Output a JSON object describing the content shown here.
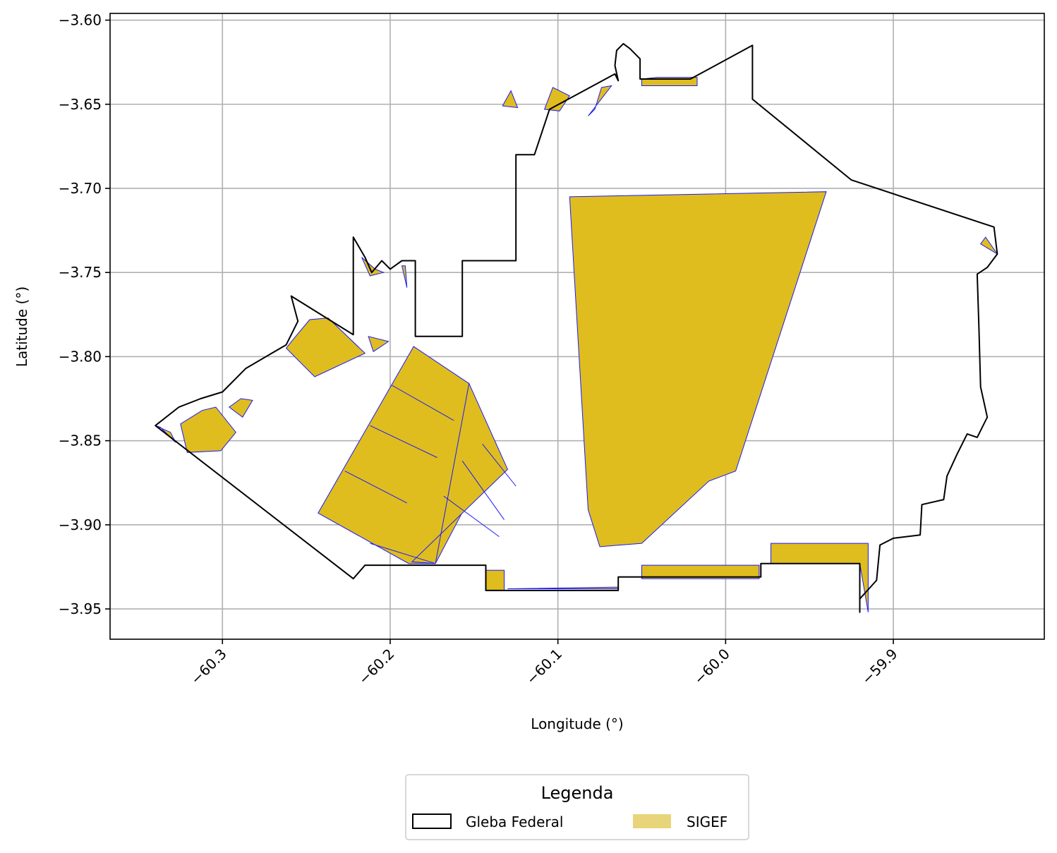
{
  "chart_data": {
    "type": "map",
    "xlabel": "Longitude (°)",
    "ylabel": "Latitude (°)",
    "xlim": [
      -60.367,
      -59.81
    ],
    "ylim": [
      -3.968,
      -3.596
    ],
    "xticks": [
      -60.3,
      -60.2,
      -60.1,
      -60.0,
      -59.9
    ],
    "xtick_labels": [
      "−60.3",
      "−60.2",
      "−60.1",
      "−60.0",
      "−59.9"
    ],
    "yticks": [
      -3.6,
      -3.65,
      -3.7,
      -3.75,
      -3.8,
      -3.85,
      -3.9,
      -3.95
    ],
    "ytick_labels": [
      "−3.60",
      "−3.65",
      "−3.70",
      "−3.75",
      "−3.80",
      "−3.85",
      "−3.90",
      "−3.95"
    ],
    "grid": true,
    "legend": {
      "title": "Legenda",
      "placement": "bottom-center",
      "entries": [
        {
          "label": "Gleba Federal",
          "style": "outline",
          "color": "#000000"
        },
        {
          "label": "SIGEF",
          "style": "fill",
          "color": "#e8d57a"
        }
      ]
    },
    "colors": {
      "gleba_edge": "#000000",
      "sigef_fill": "#dfbd1f",
      "sigef_edge": "#1a1aff",
      "grid": "#b0b0b0"
    },
    "gleba_federal": [
      [
        -60.34,
        -3.841
      ],
      [
        -60.222,
        -3.932
      ],
      [
        -60.215,
        -3.924
      ],
      [
        -60.143,
        -3.924
      ],
      [
        -60.143,
        -3.939
      ],
      [
        -60.064,
        -3.939
      ],
      [
        -60.064,
        -3.931
      ],
      [
        -59.979,
        -3.931
      ],
      [
        -59.979,
        -3.923
      ],
      [
        -59.92,
        -3.923
      ],
      [
        -59.92,
        -3.952
      ],
      [
        -59.92,
        -3.944
      ],
      [
        -59.91,
        -3.933
      ],
      [
        -59.908,
        -3.912
      ],
      [
        -59.9,
        -3.908
      ],
      [
        -59.884,
        -3.906
      ],
      [
        -59.883,
        -3.888
      ],
      [
        -59.87,
        -3.885
      ],
      [
        -59.868,
        -3.871
      ],
      [
        -59.862,
        -3.858
      ],
      [
        -59.856,
        -3.846
      ],
      [
        -59.85,
        -3.848
      ],
      [
        -59.844,
        -3.836
      ],
      [
        -59.848,
        -3.818
      ],
      [
        -59.849,
        -3.782
      ],
      [
        -59.85,
        -3.751
      ],
      [
        -59.844,
        -3.747
      ],
      [
        -59.838,
        -3.739
      ],
      [
        -59.84,
        -3.723
      ],
      [
        -59.925,
        -3.695
      ],
      [
        -59.984,
        -3.647
      ],
      [
        -59.984,
        -3.615
      ],
      [
        -60.021,
        -3.635
      ],
      [
        -60.051,
        -3.635
      ],
      [
        -60.051,
        -3.623
      ],
      [
        -60.057,
        -3.617
      ],
      [
        -60.061,
        -3.614
      ],
      [
        -60.065,
        -3.618
      ],
      [
        -60.066,
        -3.627
      ],
      [
        -60.064,
        -3.636
      ],
      [
        -60.066,
        -3.632
      ],
      [
        -60.105,
        -3.653
      ],
      [
        -60.114,
        -3.68
      ],
      [
        -60.125,
        -3.68
      ],
      [
        -60.125,
        -3.743
      ],
      [
        -60.157,
        -3.743
      ],
      [
        -60.157,
        -3.788
      ],
      [
        -60.185,
        -3.788
      ],
      [
        -60.185,
        -3.743
      ],
      [
        -60.193,
        -3.743
      ],
      [
        -60.2,
        -3.748
      ],
      [
        -60.205,
        -3.743
      ],
      [
        -60.211,
        -3.75
      ],
      [
        -60.215,
        -3.741
      ],
      [
        -60.222,
        -3.729
      ],
      [
        -60.222,
        -3.787
      ],
      [
        -60.259,
        -3.764
      ],
      [
        -60.255,
        -3.779
      ],
      [
        -60.262,
        -3.793
      ],
      [
        -60.286,
        -3.807
      ],
      [
        -60.3,
        -3.821
      ],
      [
        -60.313,
        -3.825
      ],
      [
        -60.326,
        -3.83
      ],
      [
        -60.34,
        -3.841
      ]
    ],
    "sigef_parcels": [
      [
        [
          -60.093,
          -3.705
        ],
        [
          -59.94,
          -3.702
        ],
        [
          -59.994,
          -3.868
        ],
        [
          -60.01,
          -3.874
        ],
        [
          -60.05,
          -3.911
        ],
        [
          -60.075,
          -3.913
        ],
        [
          -60.082,
          -3.891
        ]
      ],
      [
        [
          -60.186,
          -3.794
        ],
        [
          -60.153,
          -3.816
        ],
        [
          -60.143,
          -3.866
        ],
        [
          -60.173,
          -3.923
        ],
        [
          -60.189,
          -3.923
        ],
        [
          -60.243,
          -3.893
        ]
      ],
      [
        [
          -60.153,
          -3.816
        ],
        [
          -60.13,
          -3.867
        ],
        [
          -60.187,
          -3.922
        ],
        [
          -60.173,
          -3.923
        ]
      ],
      [
        [
          -60.05,
          -3.924
        ],
        [
          -59.98,
          -3.924
        ],
        [
          -59.98,
          -3.932
        ],
        [
          -60.05,
          -3.932
        ]
      ],
      [
        [
          -59.973,
          -3.911
        ],
        [
          -59.915,
          -3.911
        ],
        [
          -59.915,
          -3.952
        ],
        [
          -59.92,
          -3.923
        ],
        [
          -59.973,
          -3.923
        ]
      ],
      [
        [
          -60.143,
          -3.927
        ],
        [
          -60.132,
          -3.927
        ],
        [
          -60.132,
          -3.939
        ],
        [
          -60.143,
          -3.939
        ]
      ],
      [
        [
          -60.13,
          -3.938
        ],
        [
          -60.064,
          -3.937
        ],
        [
          -60.064,
          -3.938
        ],
        [
          -60.13,
          -3.938
        ]
      ],
      [
        [
          -60.258,
          -3.79
        ],
        [
          -60.248,
          -3.778
        ],
        [
          -60.237,
          -3.777
        ],
        [
          -60.215,
          -3.798
        ],
        [
          -60.245,
          -3.812
        ],
        [
          -60.262,
          -3.795
        ]
      ],
      [
        [
          -60.213,
          -3.788
        ],
        [
          -60.201,
          -3.791
        ],
        [
          -60.21,
          -3.797
        ]
      ],
      [
        [
          -60.312,
          -3.832
        ],
        [
          -60.325,
          -3.84
        ],
        [
          -60.321,
          -3.857
        ],
        [
          -60.301,
          -3.856
        ],
        [
          -60.292,
          -3.845
        ],
        [
          -60.304,
          -3.83
        ]
      ],
      [
        [
          -60.34,
          -3.841
        ],
        [
          -60.331,
          -3.845
        ],
        [
          -60.328,
          -3.851
        ],
        [
          -60.337,
          -3.842
        ]
      ],
      [
        [
          -60.296,
          -3.83
        ],
        [
          -60.289,
          -3.825
        ],
        [
          -60.282,
          -3.826
        ],
        [
          -60.288,
          -3.836
        ]
      ],
      [
        [
          -60.217,
          -3.741
        ],
        [
          -60.209,
          -3.748
        ],
        [
          -60.204,
          -3.75
        ],
        [
          -60.212,
          -3.752
        ]
      ],
      [
        [
          -60.193,
          -3.746
        ],
        [
          -60.191,
          -3.746
        ],
        [
          -60.19,
          -3.759
        ]
      ],
      [
        [
          -60.082,
          -3.657
        ],
        [
          -60.068,
          -3.639
        ],
        [
          -60.074,
          -3.64
        ],
        [
          -60.078,
          -3.653
        ]
      ],
      [
        [
          -60.108,
          -3.653
        ],
        [
          -60.103,
          -3.64
        ],
        [
          -60.093,
          -3.645
        ],
        [
          -60.099,
          -3.654
        ]
      ],
      [
        [
          -60.133,
          -3.651
        ],
        [
          -60.128,
          -3.642
        ],
        [
          -60.124,
          -3.652
        ]
      ],
      [
        [
          -60.05,
          -3.635
        ],
        [
          -60.041,
          -3.634
        ],
        [
          -60.017,
          -3.634
        ],
        [
          -60.017,
          -3.639
        ],
        [
          -60.05,
          -3.639
        ]
      ],
      [
        [
          -59.845,
          -3.729
        ],
        [
          -59.838,
          -3.739
        ],
        [
          -59.848,
          -3.733
        ]
      ]
    ],
    "sigef_internal_lines": [
      [
        [
          -60.199,
          -3.817
        ],
        [
          -60.162,
          -3.838
        ]
      ],
      [
        [
          -60.212,
          -3.841
        ],
        [
          -60.172,
          -3.86
        ]
      ],
      [
        [
          -60.227,
          -3.868
        ],
        [
          -60.19,
          -3.887
        ]
      ],
      [
        [
          -60.212,
          -3.911
        ],
        [
          -60.173,
          -3.923
        ]
      ],
      [
        [
          -60.145,
          -3.852
        ],
        [
          -60.125,
          -3.877
        ]
      ],
      [
        [
          -60.157,
          -3.862
        ],
        [
          -60.132,
          -3.897
        ]
      ],
      [
        [
          -60.168,
          -3.883
        ],
        [
          -60.135,
          -3.907
        ]
      ]
    ]
  }
}
